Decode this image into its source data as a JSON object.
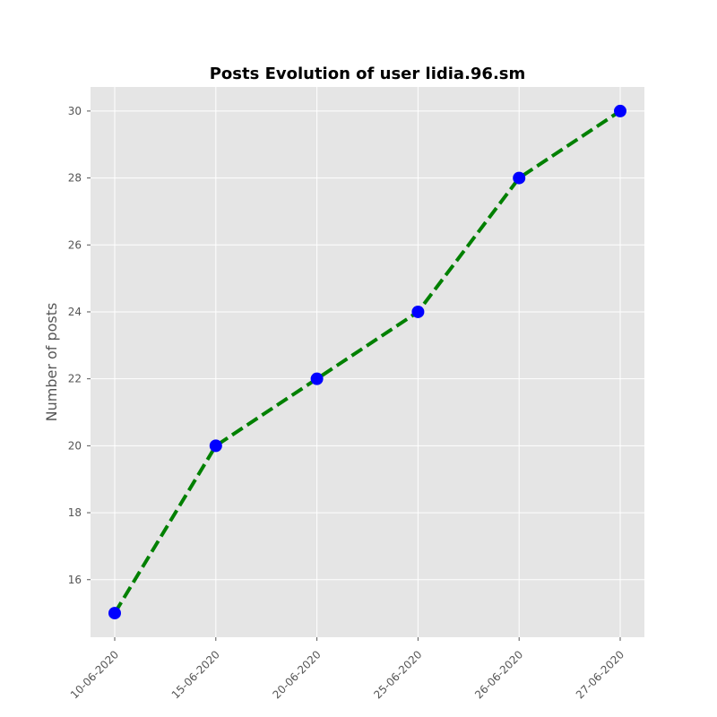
{
  "chart_data": {
    "type": "line",
    "title": "Posts Evolution of user lidia.96.sm",
    "xlabel": "",
    "ylabel": "Number of posts",
    "categories": [
      "10-06-2020",
      "15-06-2020",
      "20-06-2020",
      "25-06-2020",
      "26-06-2020",
      "27-06-2020"
    ],
    "series": [
      {
        "values": [
          15,
          20,
          22,
          24,
          28,
          30
        ]
      }
    ],
    "ylim": [
      14.28,
      30.72
    ],
    "yticks": [
      16,
      18,
      20,
      22,
      24,
      26,
      28,
      30
    ],
    "grid": true,
    "line_style": "dashed",
    "colors": {
      "line": "#008000",
      "marker": "#0000ff",
      "plot_background": "#e5e5e5",
      "grid": "#ffffff"
    }
  }
}
